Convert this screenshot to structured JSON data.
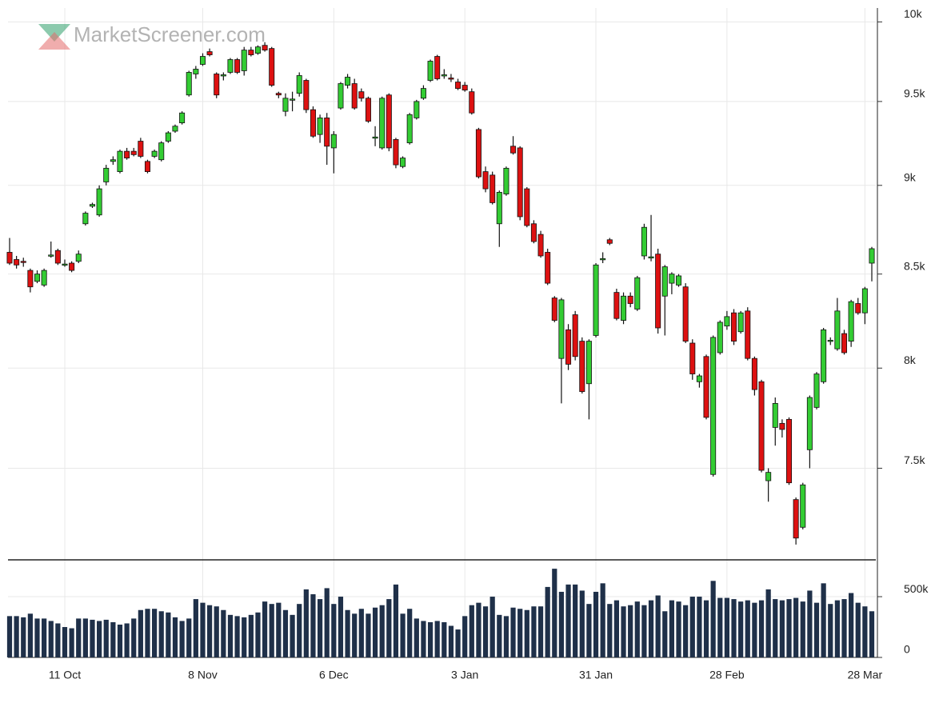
{
  "chart_data": {
    "type": "candlestick",
    "watermark": "MarketScreener.com",
    "up_color": "#33cc33",
    "down_color": "#dd1111",
    "volume_color": "#1f3049",
    "log_scale": true,
    "grid": true,
    "categories": [
      null,
      null,
      null,
      null,
      null,
      null,
      null,
      null,
      "11 Oct",
      null,
      null,
      null,
      null,
      null,
      null,
      null,
      null,
      null,
      null,
      null,
      null,
      null,
      null,
      null,
      null,
      null,
      null,
      null,
      "8 Nov",
      null,
      null,
      null,
      null,
      null,
      null,
      null,
      null,
      null,
      null,
      null,
      null,
      null,
      null,
      null,
      null,
      null,
      null,
      "6 Dec",
      null,
      null,
      null,
      null,
      null,
      null,
      null,
      null,
      null,
      null,
      null,
      null,
      null,
      null,
      null,
      null,
      null,
      null,
      "3 Jan",
      null,
      null,
      null,
      null,
      null,
      null,
      null,
      null,
      null,
      null,
      null,
      null,
      null,
      null,
      null,
      null,
      null,
      null,
      "31 Jan",
      null,
      null,
      null,
      null,
      null,
      null,
      null,
      null,
      null,
      null,
      null,
      null,
      null,
      null,
      null,
      null,
      null,
      null,
      "28 Feb",
      null,
      null,
      null,
      null,
      null,
      null,
      null,
      null,
      null,
      null,
      null,
      null,
      null,
      null,
      null,
      null,
      null,
      null,
      null,
      "28 Mar",
      null
    ],
    "open": [
      8620,
      8580,
      8570,
      8520,
      8460,
      8440,
      8600,
      8630,
      8550,
      8560,
      8570,
      8780,
      8880,
      8830,
      9020,
      9140,
      9080,
      9200,
      9200,
      9260,
      9140,
      9170,
      9150,
      9260,
      9320,
      9370,
      9540,
      9670,
      9730,
      9810,
      9670,
      9660,
      9680,
      9760,
      9690,
      9820,
      9800,
      9850,
      9830,
      9550,
      9440,
      9510,
      9550,
      9630,
      9450,
      9300,
      9400,
      9220,
      9460,
      9600,
      9610,
      9560,
      9520,
      9280,
      9220,
      9540,
      9270,
      9110,
      9250,
      9400,
      9520,
      9630,
      9780,
      9660,
      9645,
      9620,
      9600,
      9560,
      9330,
      9080,
      9060,
      8780,
      8950,
      9230,
      9220,
      8980,
      8780,
      8720,
      8620,
      8370,
      8050,
      8200,
      8280,
      8140,
      7920,
      8170,
      8580,
      8690,
      8400,
      8250,
      8380,
      8310,
      8600,
      8590,
      8610,
      8380,
      8450,
      8440,
      8430,
      8130,
      7930,
      8060,
      7470,
      8080,
      8220,
      8290,
      8190,
      8300,
      8050,
      7930,
      7440,
      7700,
      7720,
      7740,
      7350,
      7220,
      7590,
      7800,
      7930,
      8140,
      8100,
      8180,
      8140,
      8340,
      8290,
      8560
    ],
    "high": [
      8700,
      8600,
      8590,
      8530,
      8520,
      8530,
      8680,
      8640,
      8580,
      8570,
      8630,
      8850,
      8900,
      9000,
      9120,
      9170,
      9210,
      9220,
      9220,
      9280,
      9150,
      9210,
      9260,
      9320,
      9360,
      9440,
      9690,
      9720,
      9800,
      9830,
      9680,
      9680,
      9770,
      9770,
      9840,
      9840,
      9850,
      9870,
      9840,
      9560,
      9550,
      9560,
      9680,
      9640,
      9470,
      9420,
      9430,
      9320,
      9620,
      9670,
      9640,
      9580,
      9530,
      9350,
      9530,
      9550,
      9280,
      9170,
      9430,
      9510,
      9600,
      9760,
      9790,
      9700,
      9670,
      9640,
      9620,
      9580,
      9340,
      9110,
      9080,
      8970,
      9110,
      9290,
      9230,
      8990,
      8800,
      8740,
      8640,
      8380,
      8370,
      8230,
      8300,
      8160,
      8150,
      8560,
      8620,
      8700,
      8420,
      8400,
      8400,
      8490,
      8780,
      8830,
      8640,
      8550,
      8510,
      8500,
      8450,
      8150,
      7970,
      8070,
      8170,
      8250,
      8300,
      8310,
      8300,
      8320,
      8060,
      7940,
      7500,
      7850,
      7740,
      7750,
      7360,
      7430,
      7860,
      7980,
      8210,
      8160,
      8370,
      8200,
      8360,
      8370,
      8430,
      8650
    ],
    "low": [
      8550,
      8530,
      8540,
      8400,
      8450,
      8430,
      8590,
      8550,
      8540,
      8510,
      8560,
      8770,
      8870,
      8820,
      9000,
      9120,
      9070,
      9150,
      9170,
      9160,
      9070,
      9160,
      9140,
      9250,
      9310,
      9360,
      9530,
      9640,
      9720,
      9780,
      9520,
      9630,
      9670,
      9670,
      9660,
      9780,
      9790,
      9810,
      9590,
      9520,
      9410,
      9440,
      9530,
      9430,
      9280,
      9250,
      9120,
      9070,
      9450,
      9580,
      9450,
      9500,
      9370,
      9230,
      9210,
      9200,
      9100,
      9100,
      9240,
      9390,
      9510,
      9620,
      9630,
      9640,
      9620,
      9570,
      9560,
      9420,
      9040,
      8960,
      8890,
      8650,
      8940,
      9180,
      8800,
      8760,
      8670,
      8590,
      8440,
      8240,
      7820,
      7990,
      8040,
      7870,
      7740,
      8160,
      8560,
      8660,
      8250,
      8230,
      8320,
      8300,
      8580,
      8570,
      8180,
      8170,
      8390,
      8430,
      8130,
      7940,
      7900,
      7740,
      7460,
      8070,
      8200,
      8120,
      8180,
      8040,
      7860,
      7480,
      7340,
      7610,
      7650,
      7420,
      7140,
      7210,
      7500,
      7790,
      7920,
      8120,
      8090,
      8070,
      8110,
      8280,
      8230,
      8460
    ],
    "close": [
      8560,
      8550,
      8565,
      8430,
      8500,
      8520,
      8605,
      8560,
      8555,
      8520,
      8610,
      8840,
      8890,
      8980,
      9100,
      9150,
      9200,
      9160,
      9180,
      9170,
      9080,
      9200,
      9250,
      9310,
      9350,
      9430,
      9680,
      9700,
      9780,
      9790,
      9540,
      9665,
      9760,
      9680,
      9820,
      9790,
      9840,
      9820,
      9600,
      9540,
      9520,
      9515,
      9660,
      9450,
      9290,
      9400,
      9230,
      9300,
      9610,
      9650,
      9460,
      9520,
      9380,
      9285,
      9520,
      9220,
      9120,
      9160,
      9420,
      9500,
      9580,
      9750,
      9640,
      9665,
      9640,
      9580,
      9570,
      9430,
      9050,
      8980,
      8900,
      8960,
      9100,
      9190,
      8820,
      8770,
      8680,
      8600,
      8450,
      8250,
      8360,
      8020,
      8060,
      7880,
      8140,
      8550,
      8585,
      8670,
      8260,
      8380,
      8340,
      8480,
      8760,
      8595,
      8210,
      8540,
      8500,
      8490,
      8140,
      7970,
      7960,
      7750,
      8160,
      8240,
      8270,
      8140,
      8290,
      8050,
      7890,
      7490,
      7480,
      7820,
      7690,
      7430,
      7170,
      7420,
      7850,
      7970,
      8200,
      8145,
      8300,
      8080,
      8350,
      8290,
      8420,
      8640
    ],
    "volume": [
      340000,
      340000,
      330000,
      360000,
      320000,
      320000,
      300000,
      280000,
      250000,
      240000,
      320000,
      320000,
      310000,
      300000,
      310000,
      290000,
      270000,
      280000,
      320000,
      390000,
      400000,
      400000,
      380000,
      370000,
      330000,
      300000,
      320000,
      480000,
      450000,
      430000,
      420000,
      390000,
      350000,
      340000,
      330000,
      350000,
      370000,
      460000,
      440000,
      450000,
      390000,
      350000,
      440000,
      560000,
      520000,
      480000,
      570000,
      440000,
      500000,
      390000,
      360000,
      400000,
      360000,
      410000,
      430000,
      480000,
      600000,
      360000,
      400000,
      320000,
      300000,
      290000,
      300000,
      290000,
      260000,
      230000,
      340000,
      430000,
      450000,
      420000,
      500000,
      350000,
      340000,
      410000,
      400000,
      390000,
      420000,
      420000,
      580000,
      730000,
      540000,
      600000,
      600000,
      550000,
      440000,
      540000,
      610000,
      440000,
      470000,
      420000,
      430000,
      460000,
      430000,
      470000,
      510000,
      380000,
      470000,
      460000,
      430000,
      500000,
      500000,
      470000,
      630000,
      490000,
      490000,
      480000,
      460000,
      470000,
      450000,
      470000,
      560000,
      480000,
      470000,
      480000,
      490000,
      460000,
      550000,
      450000,
      610000,
      440000,
      470000,
      480000,
      530000,
      450000,
      420000,
      380000
    ],
    "ylim": [
      7070,
      10090
    ],
    "yticks": [
      {
        "value": 7500,
        "label": "7.5k"
      },
      {
        "value": 8000,
        "label": "8k"
      },
      {
        "value": 8500,
        "label": "8.5k"
      },
      {
        "value": 9000,
        "label": "9k"
      },
      {
        "value": 9500,
        "label": "9.5k"
      },
      {
        "value": 10000,
        "label": "10k"
      }
    ],
    "y2lim": [
      0,
      790000
    ],
    "y2ticks": [
      0,
      {
        "value": 500000,
        "label": "500k"
      }
    ]
  }
}
